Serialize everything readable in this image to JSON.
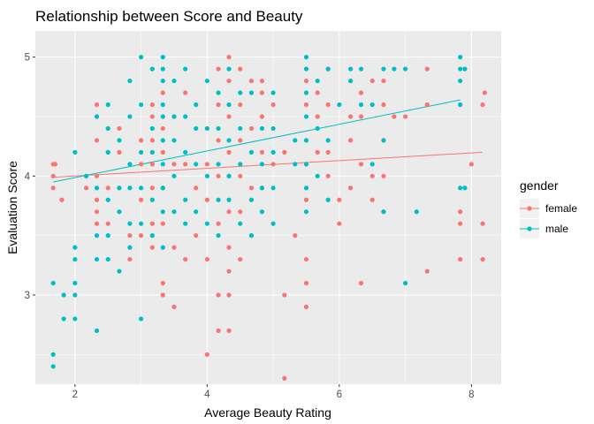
{
  "chart_data": {
    "type": "scatter",
    "title": "Relationship between Score and Beauty",
    "xlabel": "Average Beauty Rating",
    "ylabel": "Evaluation Score",
    "xlim": [
      1.4,
      8.45
    ],
    "ylim": [
      2.25,
      5.22
    ],
    "x_ticks": [
      2,
      4,
      6,
      8
    ],
    "y_ticks": [
      3,
      4,
      5
    ],
    "x_tick_labels": [
      "2",
      "4",
      "6",
      "8"
    ],
    "y_tick_labels": [
      "3",
      "4",
      "5"
    ],
    "grid": true,
    "legend": {
      "title": "gender",
      "position": "right",
      "entries": [
        "female",
        "male"
      ]
    },
    "series": [
      {
        "name": "female",
        "color": "#F8766D",
        "fit_line": {
          "x": [
            1.67,
            8.17
          ],
          "y": [
            3.99,
            4.2
          ]
        },
        "points": [
          [
            1.67,
            4.1
          ],
          [
            1.67,
            4.0
          ],
          [
            1.67,
            3.9
          ],
          [
            1.7,
            4.1
          ],
          [
            1.8,
            3.8
          ],
          [
            2.17,
            4.0
          ],
          [
            2.17,
            3.9
          ],
          [
            2.33,
            4.5
          ],
          [
            2.33,
            4.6
          ],
          [
            2.33,
            4.3
          ],
          [
            2.33,
            4.0
          ],
          [
            2.33,
            3.8
          ],
          [
            2.33,
            3.7
          ],
          [
            2.33,
            3.6
          ],
          [
            2.5,
            4.4
          ],
          [
            2.5,
            4.2
          ],
          [
            2.5,
            3.9
          ],
          [
            2.5,
            3.6
          ],
          [
            2.67,
            4.4
          ],
          [
            2.67,
            4.2
          ],
          [
            2.67,
            3.9
          ],
          [
            2.83,
            3.5
          ],
          [
            2.83,
            3.3
          ],
          [
            3.0,
            4.3
          ],
          [
            3.0,
            4.1
          ],
          [
            3.0,
            3.8
          ],
          [
            3.0,
            3.5
          ],
          [
            3.17,
            4.6
          ],
          [
            3.17,
            4.5
          ],
          [
            3.17,
            4.3
          ],
          [
            3.17,
            4.1
          ],
          [
            3.17,
            3.9
          ],
          [
            3.17,
            3.6
          ],
          [
            3.17,
            3.4
          ],
          [
            3.33,
            4.7
          ],
          [
            3.33,
            4.4
          ],
          [
            3.33,
            4.2
          ],
          [
            3.33,
            3.9
          ],
          [
            3.33,
            3.6
          ],
          [
            3.33,
            3.1
          ],
          [
            3.33,
            3.0
          ],
          [
            3.5,
            4.5
          ],
          [
            3.5,
            4.1
          ],
          [
            3.5,
            3.4
          ],
          [
            3.5,
            2.9
          ],
          [
            3.67,
            4.7
          ],
          [
            3.67,
            4.1
          ],
          [
            3.67,
            3.3
          ],
          [
            3.83,
            3.5
          ],
          [
            3.83,
            3.9
          ],
          [
            4.0,
            4.4
          ],
          [
            4.0,
            4.1
          ],
          [
            4.0,
            3.8
          ],
          [
            4.0,
            3.3
          ],
          [
            4.0,
            2.5
          ],
          [
            4.17,
            4.9
          ],
          [
            4.17,
            4.6
          ],
          [
            4.17,
            4.3
          ],
          [
            4.17,
            4.0
          ],
          [
            4.17,
            3.6
          ],
          [
            4.17,
            3.0
          ],
          [
            4.17,
            2.7
          ],
          [
            4.33,
            5.0
          ],
          [
            4.33,
            4.8
          ],
          [
            4.33,
            4.5
          ],
          [
            4.33,
            4.2
          ],
          [
            4.33,
            4.0
          ],
          [
            4.33,
            3.7
          ],
          [
            4.33,
            3.4
          ],
          [
            4.33,
            3.2
          ],
          [
            4.33,
            3.0
          ],
          [
            4.33,
            2.7
          ],
          [
            4.5,
            4.9
          ],
          [
            4.5,
            4.6
          ],
          [
            4.5,
            4.3
          ],
          [
            4.5,
            4.0
          ],
          [
            4.5,
            3.7
          ],
          [
            4.5,
            3.3
          ],
          [
            4.67,
            4.8
          ],
          [
            4.67,
            4.4
          ],
          [
            4.67,
            3.9
          ],
          [
            4.67,
            3.5
          ],
          [
            4.83,
            4.8
          ],
          [
            4.83,
            4.7
          ],
          [
            4.83,
            4.5
          ],
          [
            4.83,
            4.2
          ],
          [
            4.83,
            3.9
          ],
          [
            5.0,
            4.6
          ],
          [
            5.0,
            4.1
          ],
          [
            5.17,
            4.2
          ],
          [
            5.17,
            3.0
          ],
          [
            5.17,
            2.3
          ],
          [
            5.33,
            3.5
          ],
          [
            5.5,
            4.8
          ],
          [
            5.5,
            4.6
          ],
          [
            5.5,
            4.1
          ],
          [
            5.5,
            3.8
          ],
          [
            5.5,
            3.3
          ],
          [
            5.5,
            3.1
          ],
          [
            5.5,
            2.9
          ],
          [
            5.67,
            4.7
          ],
          [
            5.67,
            4.5
          ],
          [
            5.67,
            4.2
          ],
          [
            5.83,
            4.9
          ],
          [
            5.83,
            4.6
          ],
          [
            5.83,
            4.2
          ],
          [
            5.83,
            4.0
          ],
          [
            6.0,
            3.8
          ],
          [
            6.0,
            3.6
          ],
          [
            6.17,
            4.8
          ],
          [
            6.17,
            4.5
          ],
          [
            6.17,
            4.3
          ],
          [
            6.17,
            3.9
          ],
          [
            6.33,
            4.7
          ],
          [
            6.33,
            4.5
          ],
          [
            6.33,
            4.1
          ],
          [
            6.33,
            3.1
          ],
          [
            6.5,
            4.8
          ],
          [
            6.5,
            4.0
          ],
          [
            6.5,
            3.8
          ],
          [
            6.67,
            4.8
          ],
          [
            6.67,
            4.6
          ],
          [
            6.67,
            4.3
          ],
          [
            6.67,
            4.0
          ],
          [
            6.67,
            3.7
          ],
          [
            6.83,
            4.5
          ],
          [
            7.0,
            4.5
          ],
          [
            7.33,
            4.9
          ],
          [
            7.33,
            4.6
          ],
          [
            7.33,
            3.2
          ],
          [
            7.83,
            3.7
          ],
          [
            7.83,
            3.6
          ],
          [
            7.83,
            3.3
          ],
          [
            8.0,
            4.1
          ],
          [
            8.17,
            4.6
          ],
          [
            8.17,
            3.6
          ],
          [
            8.17,
            3.3
          ],
          [
            8.2,
            4.7
          ]
        ]
      },
      {
        "name": "male",
        "color": "#00BFC4",
        "fit_line": {
          "x": [
            1.67,
            7.83
          ],
          "y": [
            3.95,
            4.64
          ]
        },
        "points": [
          [
            1.67,
            3.1
          ],
          [
            1.67,
            2.5
          ],
          [
            1.67,
            2.4
          ],
          [
            1.83,
            3.0
          ],
          [
            1.83,
            2.8
          ],
          [
            2.0,
            4.2
          ],
          [
            2.0,
            3.4
          ],
          [
            2.0,
            3.3
          ],
          [
            2.0,
            3.1
          ],
          [
            2.0,
            3.0
          ],
          [
            2.0,
            2.8
          ],
          [
            2.17,
            4.0
          ],
          [
            2.33,
            4.5
          ],
          [
            2.33,
            3.9
          ],
          [
            2.33,
            3.5
          ],
          [
            2.33,
            3.3
          ],
          [
            2.33,
            2.7
          ],
          [
            2.5,
            4.6
          ],
          [
            2.5,
            4.4
          ],
          [
            2.5,
            4.2
          ],
          [
            2.5,
            3.8
          ],
          [
            2.5,
            3.5
          ],
          [
            2.5,
            3.3
          ],
          [
            2.67,
            4.3
          ],
          [
            2.67,
            3.9
          ],
          [
            2.67,
            3.7
          ],
          [
            2.67,
            3.2
          ],
          [
            2.83,
            4.8
          ],
          [
            2.83,
            4.5
          ],
          [
            2.83,
            4.1
          ],
          [
            2.83,
            3.9
          ],
          [
            2.83,
            3.6
          ],
          [
            2.83,
            3.4
          ],
          [
            3.0,
            5.0
          ],
          [
            3.0,
            4.6
          ],
          [
            3.0,
            4.2
          ],
          [
            3.0,
            3.9
          ],
          [
            3.0,
            3.6
          ],
          [
            3.0,
            2.8
          ],
          [
            3.17,
            4.9
          ],
          [
            3.17,
            4.4
          ],
          [
            3.17,
            4.2
          ],
          [
            3.17,
            3.8
          ],
          [
            3.17,
            3.5
          ],
          [
            3.33,
            5.0
          ],
          [
            3.33,
            4.9
          ],
          [
            3.33,
            4.8
          ],
          [
            3.33,
            4.6
          ],
          [
            3.33,
            4.5
          ],
          [
            3.33,
            4.3
          ],
          [
            3.33,
            4.1
          ],
          [
            3.33,
            3.9
          ],
          [
            3.33,
            3.7
          ],
          [
            3.33,
            3.4
          ],
          [
            3.5,
            4.8
          ],
          [
            3.5,
            4.5
          ],
          [
            3.5,
            4.3
          ],
          [
            3.5,
            4.0
          ],
          [
            3.5,
            3.7
          ],
          [
            3.67,
            4.9
          ],
          [
            3.67,
            4.5
          ],
          [
            3.67,
            4.2
          ],
          [
            3.67,
            3.8
          ],
          [
            3.67,
            3.6
          ],
          [
            3.83,
            4.6
          ],
          [
            3.83,
            4.4
          ],
          [
            3.83,
            4.1
          ],
          [
            3.83,
            3.7
          ],
          [
            4.0,
            4.8
          ],
          [
            4.0,
            4.4
          ],
          [
            4.0,
            4.0
          ],
          [
            4.0,
            3.6
          ],
          [
            4.17,
            4.7
          ],
          [
            4.17,
            4.4
          ],
          [
            4.17,
            4.1
          ],
          [
            4.17,
            3.8
          ],
          [
            4.17,
            3.5
          ],
          [
            4.33,
            4.9
          ],
          [
            4.33,
            4.6
          ],
          [
            4.33,
            4.3
          ],
          [
            4.33,
            4.0
          ],
          [
            4.33,
            3.8
          ],
          [
            4.5,
            4.7
          ],
          [
            4.5,
            4.4
          ],
          [
            4.5,
            4.1
          ],
          [
            4.5,
            3.6
          ],
          [
            4.67,
            4.7
          ],
          [
            4.67,
            4.2
          ],
          [
            4.67,
            3.8
          ],
          [
            4.67,
            3.5
          ],
          [
            4.83,
            4.4
          ],
          [
            4.83,
            4.1
          ],
          [
            4.83,
            3.9
          ],
          [
            4.83,
            3.7
          ],
          [
            5.0,
            4.7
          ],
          [
            5.0,
            4.4
          ],
          [
            5.0,
            4.2
          ],
          [
            5.0,
            3.9
          ],
          [
            5.0,
            3.6
          ],
          [
            5.33,
            4.3
          ],
          [
            5.33,
            4.1
          ],
          [
            5.5,
            5.0
          ],
          [
            5.5,
            4.9
          ],
          [
            5.5,
            4.7
          ],
          [
            5.5,
            4.5
          ],
          [
            5.5,
            4.3
          ],
          [
            5.5,
            4.1
          ],
          [
            5.5,
            3.9
          ],
          [
            5.5,
            3.7
          ],
          [
            5.67,
            4.8
          ],
          [
            5.67,
            4.4
          ],
          [
            5.67,
            4.0
          ],
          [
            5.83,
            4.9
          ],
          [
            5.83,
            4.3
          ],
          [
            5.83,
            3.8
          ],
          [
            6.0,
            4.6
          ],
          [
            6.17,
            4.9
          ],
          [
            6.17,
            4.8
          ],
          [
            6.33,
            4.9
          ],
          [
            6.33,
            4.6
          ],
          [
            6.5,
            4.6
          ],
          [
            6.5,
            4.1
          ],
          [
            6.67,
            4.9
          ],
          [
            6.67,
            4.3
          ],
          [
            6.67,
            3.7
          ],
          [
            6.83,
            4.9
          ],
          [
            7.0,
            4.9
          ],
          [
            7.0,
            3.1
          ],
          [
            7.17,
            3.7
          ],
          [
            7.83,
            5.0
          ],
          [
            7.83,
            4.9
          ],
          [
            7.83,
            4.8
          ],
          [
            7.83,
            4.6
          ],
          [
            7.83,
            3.9
          ],
          [
            7.9,
            4.9
          ],
          [
            7.9,
            3.9
          ]
        ]
      }
    ]
  }
}
